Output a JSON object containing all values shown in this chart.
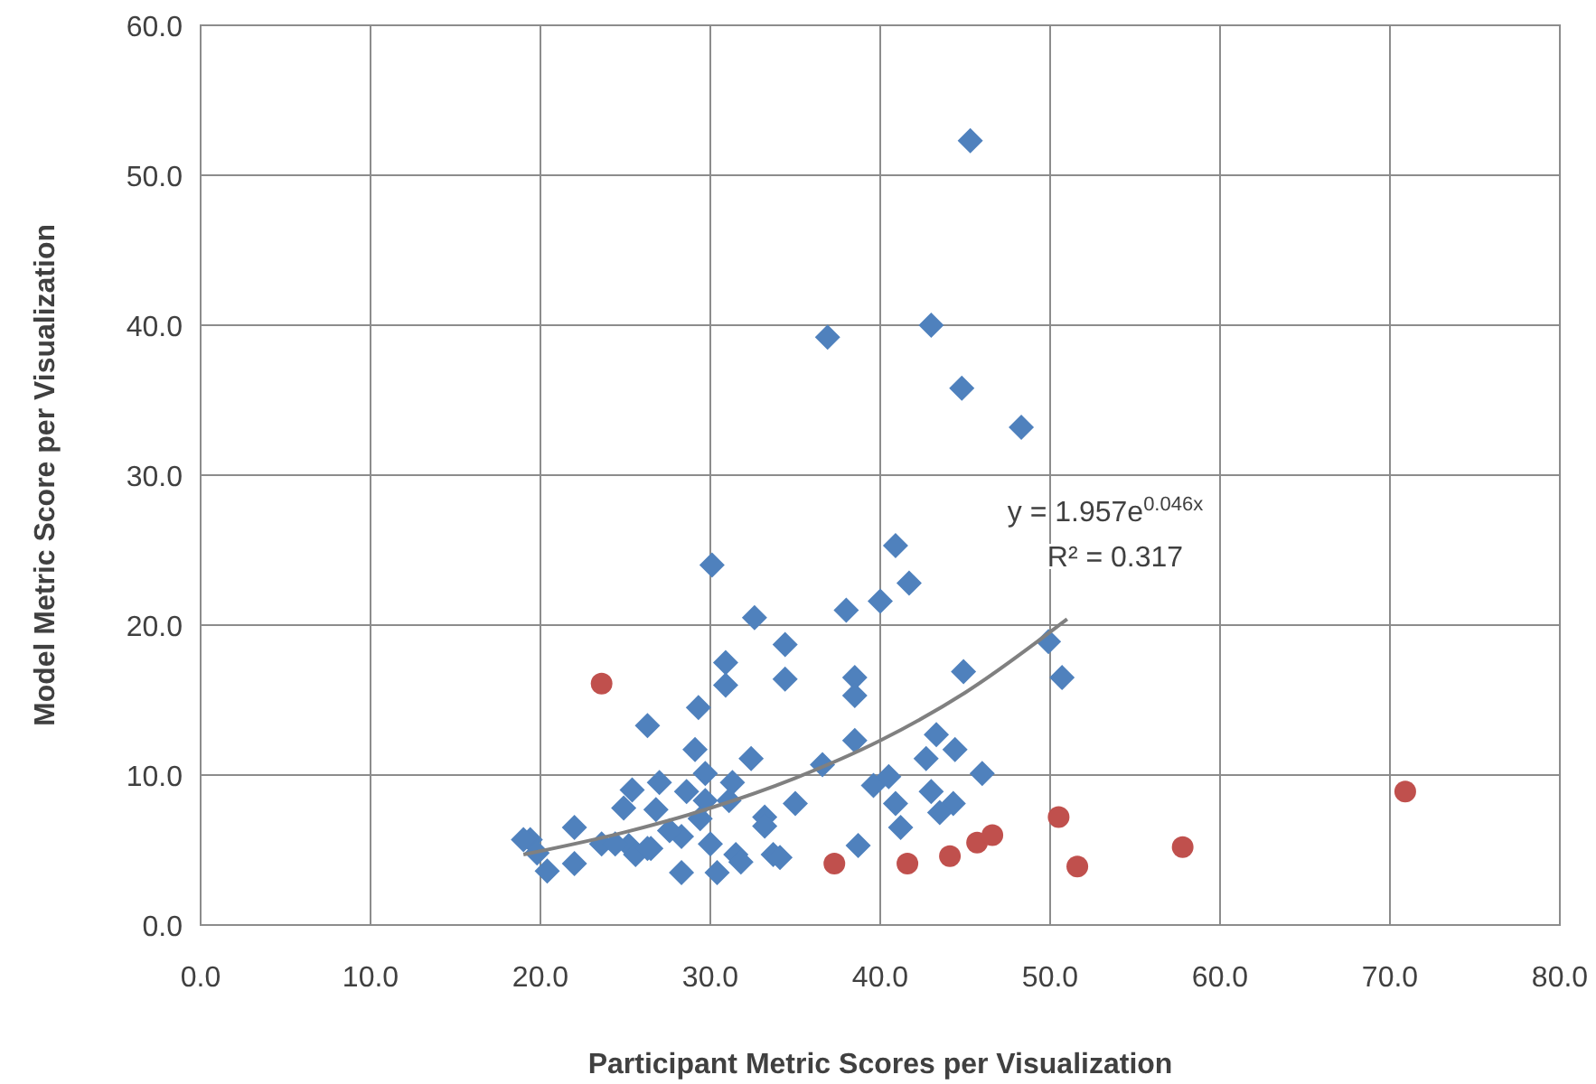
{
  "chart_data": {
    "type": "scatter",
    "xlabel": "Participant Metric Scores per Visualization",
    "ylabel": "Model Metric Score per Visualization",
    "xlim": [
      0,
      80
    ],
    "ylim": [
      0,
      60
    ],
    "xticks": [
      {
        "value": 0,
        "label": "0.0"
      },
      {
        "value": 10,
        "label": "10.0"
      },
      {
        "value": 20,
        "label": "20.0"
      },
      {
        "value": 30,
        "label": "30.0"
      },
      {
        "value": 40,
        "label": "40.0"
      },
      {
        "value": 50,
        "label": "50.0"
      },
      {
        "value": 60,
        "label": "60.0"
      },
      {
        "value": 70,
        "label": "70.0"
      },
      {
        "value": 80,
        "label": "80.0"
      }
    ],
    "yticks": [
      {
        "value": 0,
        "label": "0.0"
      },
      {
        "value": 10,
        "label": "10.0"
      },
      {
        "value": 20,
        "label": "20.0"
      },
      {
        "value": 30,
        "label": "30.0"
      },
      {
        "value": 40,
        "label": "40.0"
      },
      {
        "value": 50,
        "label": "50.0"
      },
      {
        "value": 60,
        "label": "60.0"
      }
    ],
    "grid": true,
    "annotations": [
      "y = 1.957e$^{0.046x}$",
      "R² = 0.317"
    ],
    "series": [
      {
        "marker": "diamond",
        "color": "#4f81bd",
        "x": [
          45.3,
          43.0,
          44.8,
          48.3,
          36.9,
          30.1,
          32.6,
          38.0,
          40.0,
          40.9,
          41.7,
          34.4,
          30.9,
          34.4,
          30.9,
          38.5,
          38.5,
          29.3,
          26.3,
          29.1,
          32.4,
          38.5,
          36.6,
          25.4,
          27.0,
          29.7,
          31.3,
          28.6,
          24.9,
          26.8,
          29.7,
          31.1,
          33.2,
          35.0,
          29.4,
          22.0,
          19.4,
          23.6,
          25.2,
          26.5,
          28.3,
          30.0,
          31.5,
          20.4,
          22.0,
          25.6,
          28.3,
          30.4,
          31.8,
          33.7,
          33.2,
          38.7,
          39.6,
          49.9,
          50.7,
          44.9,
          43.3,
          44.4,
          42.7,
          46.0,
          40.5,
          40.9,
          43.0,
          44.3,
          43.5,
          41.2,
          19.0,
          19.8,
          24.4,
          26.3,
          27.6,
          34.1
        ],
        "values": [
          52.3,
          40.0,
          35.8,
          33.2,
          39.2,
          24.0,
          20.5,
          21.0,
          21.6,
          25.3,
          22.8,
          18.7,
          17.5,
          16.4,
          16.0,
          16.5,
          15.3,
          14.5,
          13.3,
          11.7,
          11.1,
          12.3,
          10.7,
          9.0,
          9.5,
          10.1,
          9.5,
          8.9,
          7.8,
          7.7,
          8.3,
          8.3,
          7.2,
          8.1,
          7.1,
          6.5,
          5.7,
          5.4,
          5.3,
          5.1,
          5.9,
          5.4,
          4.7,
          3.6,
          4.1,
          4.7,
          3.5,
          3.5,
          4.2,
          4.7,
          6.6,
          5.3,
          9.3,
          18.9,
          16.5,
          16.9,
          12.7,
          11.7,
          11.1,
          10.1,
          9.9,
          8.1,
          8.9,
          8.1,
          7.5,
          6.5,
          5.7,
          4.8,
          5.4,
          5.1,
          6.3,
          4.5
        ]
      },
      {
        "marker": "circle",
        "color": "#c0504d",
        "x": [
          23.6,
          37.3,
          41.6,
          44.1,
          45.7,
          46.6,
          50.5,
          51.6,
          57.8,
          70.9
        ],
        "values": [
          16.1,
          4.1,
          4.1,
          4.6,
          5.5,
          6.0,
          7.2,
          3.9,
          5.2,
          8.9
        ]
      },
      {
        "type": "line",
        "marker": "none",
        "color": "#808080",
        "x": [
          19,
          25,
          30,
          35,
          40,
          45,
          51
        ],
        "values": [
          4.7,
          6.2,
          7.8,
          9.8,
          12.3,
          15.5,
          20.4
        ]
      }
    ]
  }
}
